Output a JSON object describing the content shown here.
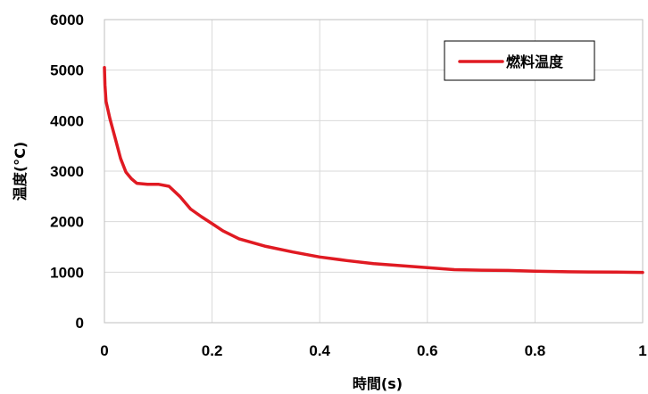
{
  "chart_data": {
    "type": "line",
    "title": "",
    "xlabel": "時間(s)",
    "ylabel": "温度(°C)",
    "xlim": [
      0,
      1
    ],
    "ylim": [
      0,
      6000
    ],
    "x_ticks": [
      "0",
      "0.2",
      "0.4",
      "0.6",
      "0.8",
      "1"
    ],
    "y_ticks": [
      "0",
      "1000",
      "2000",
      "3000",
      "4000",
      "5000",
      "6000"
    ],
    "grid": true,
    "legend_position": "top-right",
    "series": [
      {
        "name": "燃料温度",
        "color": "#e01a22",
        "x": [
          0,
          0.001,
          0.003,
          0.01,
          0.02,
          0.03,
          0.04,
          0.05,
          0.06,
          0.08,
          0.1,
          0.12,
          0.14,
          0.16,
          0.18,
          0.2,
          0.22,
          0.25,
          0.3,
          0.35,
          0.4,
          0.45,
          0.5,
          0.55,
          0.6,
          0.65,
          0.7,
          0.75,
          0.8,
          0.85,
          0.9,
          0.95,
          1.0
        ],
        "y": [
          5050,
          4700,
          4380,
          4050,
          3650,
          3250,
          2980,
          2850,
          2760,
          2740,
          2740,
          2700,
          2500,
          2250,
          2100,
          1960,
          1820,
          1660,
          1510,
          1400,
          1300,
          1230,
          1170,
          1130,
          1090,
          1050,
          1040,
          1035,
          1020,
          1010,
          1005,
          1000,
          995
        ]
      }
    ]
  }
}
